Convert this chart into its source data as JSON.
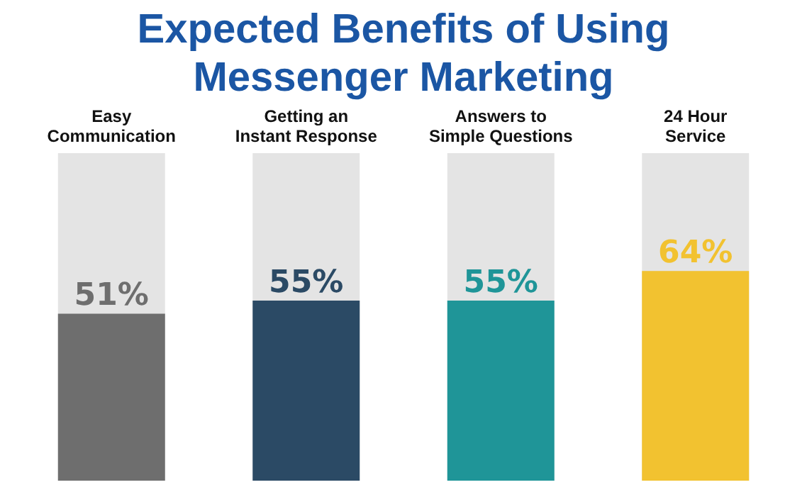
{
  "chart_data": {
    "type": "bar",
    "title": "Expected Benefits of Using Messenger Marketing",
    "categories": [
      "Easy Communication",
      "Getting an Instant Response",
      "Answers to Simple Questions",
      "24 Hour Service"
    ],
    "values": [
      51,
      55,
      55,
      64
    ],
    "colors": [
      "#6e6e6e",
      "#2b4a65",
      "#1f9598",
      "#f2c230"
    ],
    "value_labels": [
      "51%",
      "55%",
      "55%",
      "64%"
    ],
    "ylim": [
      0,
      100
    ],
    "tick_labels": false,
    "legend": false
  }
}
